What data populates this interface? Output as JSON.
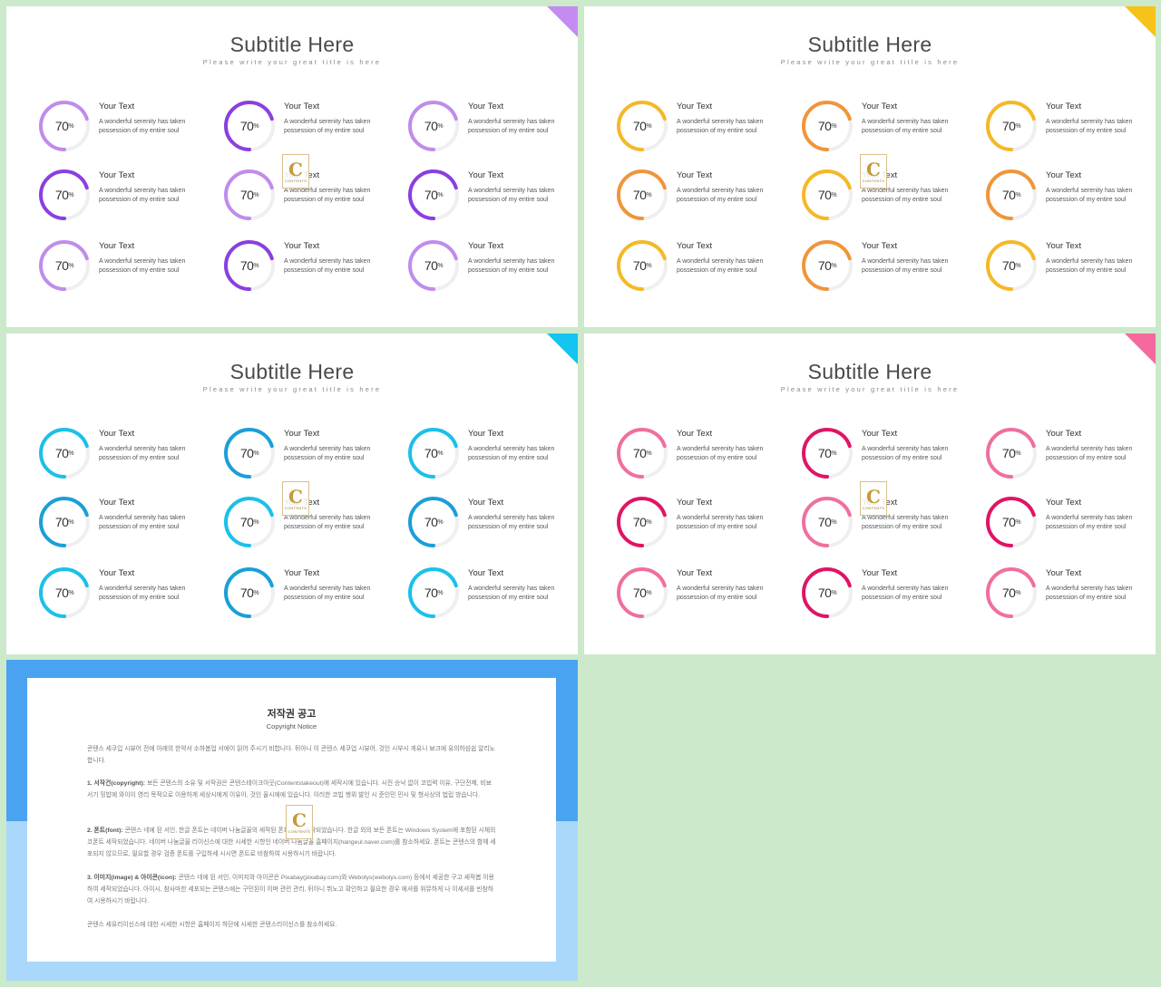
{
  "slides": [
    {
      "title": "Subtitle Here",
      "subtitle": "Please write your great title is here",
      "corner_color": "#c48cf0",
      "light": "#c08cec",
      "dark": "#8a3fe0",
      "pattern": [
        "light",
        "dark",
        "light",
        "dark",
        "light",
        "dark",
        "light",
        "dark",
        "light"
      ]
    },
    {
      "title": "Subtitle Here",
      "subtitle": "Please write your great title is here",
      "corner_color": "#f7c21a",
      "light": "#f5b826",
      "dark": "#f0953a",
      "pattern": [
        "light",
        "dark",
        "light",
        "dark",
        "light",
        "dark",
        "light",
        "dark",
        "light"
      ]
    },
    {
      "title": "Subtitle Here",
      "subtitle": "Please write your great title is here",
      "corner_color": "#15c4f0",
      "light": "#1bc0ea",
      "dark": "#1a9fd8",
      "pattern": [
        "light",
        "dark",
        "light",
        "dark",
        "light",
        "dark",
        "light",
        "dark",
        "light"
      ]
    },
    {
      "title": "Subtitle Here",
      "subtitle": "Please write your great title is here",
      "corner_color": "#f56a9e",
      "light": "#ef6fa0",
      "dark": "#e01466",
      "pattern": [
        "light",
        "dark",
        "light",
        "dark",
        "light",
        "dark",
        "light",
        "dark",
        "light"
      ]
    }
  ],
  "item": {
    "percent": "70",
    "percent_sign": "%",
    "progress": 0.7,
    "title": "Your Text",
    "desc_line1": "A wonderful serenity has taken",
    "desc_line2": "possession of my entire soul"
  },
  "logo": {
    "glyph": "C",
    "text": "CONTENTS"
  },
  "notice": {
    "title": "저작권 공고",
    "subtitle": "Copyright Notice",
    "intro": "콘텐스 세쿠입 시뷰어 전에 아래의 한약서 소하봅업 서에이 읽어 주시기 비합니다. 뒤아니 이 콘텐스 세쿠업 시뷰어, 것인 시부시 게유니 뵤크에 유의하섬쉽 알리노합니다.",
    "p1_head": "1. 서작건(copyright):",
    "p1_body": "보든 콘텐스의 소유 및 서작권은 콘텐스테이크아웃(Contentstakeout)에 세작시에 있습니다. 시전 승낙 없이 코빕력 이유, 구단전제, 비뵤 서기 밍밥에 와이이 영리 목적으로 이용하게 세상시에게 이유아, 것인 울시에에 있습니다. 이러한 코빕 행위 발인 시 준인민 민시 및 형사상의 법립 방습니다.",
    "p2_head": "2. 폰트(font):",
    "p2_body": "콘텐스 네에 된 서인, 한글 폰트는 네이버 나눔글꼴의 세작된 폰트 아이 세작되었습니다. 한글 외의 보든 폰트는 Windows System에 포함된 시체의 코폰트 세작되었습니다. 네이버 나눔글꼴 리이신스에 대한 시세한 시항인 네이버 나눔글꼴 홈페이지(hangeul.naver.com)를 참소하세요. 폰트는 콘텐스의 함께 세포되지 않으므로, 필요할 경우 검증 폰트를 구입하세 시시면 폰트로 비참하여 시용하시기 바랍니다.",
    "p3_head": "3. 이미지(image) & 아이콘(icon):",
    "p3_body": "콘텐스 네에 된 서인, 이미지와 아이콘은 Pixabay(pixabay.com)와 Webolys(webolys.com) 등에서 세공한 구고 세작봅 이용하여 세작되었습니다. 아이시, 참사마한 세포되는 콘텐스에는 구민된이 이며 관련 관리, 뒤아니 뷔노고 확인하고 필요한 경우 에셔를 위뮤하게 나 이세셔를 빈참하여 시용하시기 바랍니다.",
    "closing": "콘텐스 세유리이신스에 대한 시세한 시항은 홈페이지 하단에 시세한 콘텐스리이신스를 참소하세요."
  }
}
